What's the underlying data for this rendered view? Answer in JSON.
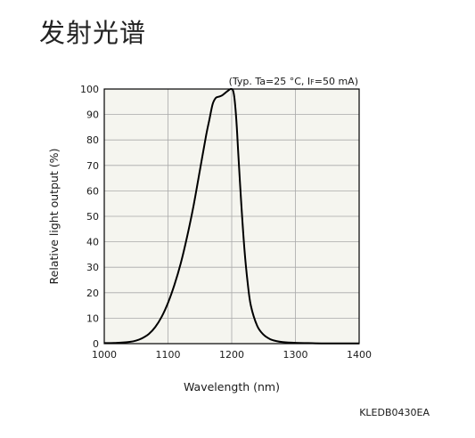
{
  "page_title": "发射光谱",
  "doc_code": "KLEDB0430EA",
  "conditions": {
    "prefix": "(Typ. Ta=25 °C, I",
    "subscript": "F",
    "suffix": "=50 mA)"
  },
  "chart_data": {
    "type": "line",
    "title": "",
    "xlabel": "Wavelength (nm)",
    "ylabel": "Relative light output (%)",
    "xlim": [
      1000,
      1400
    ],
    "ylim": [
      0,
      100
    ],
    "xticks": [
      1000,
      1100,
      1200,
      1300,
      1400
    ],
    "yticks": [
      0,
      10,
      20,
      30,
      40,
      50,
      60,
      70,
      80,
      90,
      100
    ],
    "grid": true,
    "legend": "none",
    "line_color": "#000000",
    "plot_background": "#f5f5ef",
    "grid_color": "#a9a9a9",
    "series": [
      {
        "x": [
          1000,
          1020,
          1040,
          1050,
          1060,
          1070,
          1080,
          1090,
          1100,
          1110,
          1120,
          1130,
          1140,
          1150,
          1160,
          1165,
          1170,
          1175,
          1180,
          1185,
          1190,
          1195,
          1198,
          1200,
          1202,
          1204,
          1206,
          1208,
          1210,
          1215,
          1220,
          1225,
          1230,
          1240,
          1250,
          1260,
          1270,
          1280,
          1300,
          1320,
          1340,
          1360,
          1380,
          1400
        ],
        "y": [
          0.2,
          0.3,
          0.7,
          1.2,
          2.2,
          3.8,
          6.5,
          10.5,
          16,
          23,
          31.5,
          42,
          54,
          68,
          82,
          88,
          94,
          96.5,
          97,
          97.5,
          98.5,
          99.5,
          100,
          100,
          99.5,
          97,
          92,
          85,
          76,
          55,
          37,
          24,
          15,
          7,
          3.5,
          1.8,
          1.0,
          0.6,
          0.3,
          0.2,
          0.1,
          0.1,
          0.1,
          0.1
        ]
      }
    ]
  }
}
